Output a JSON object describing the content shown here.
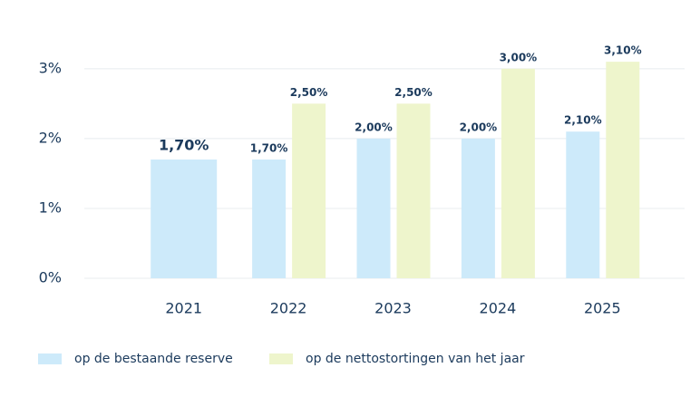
{
  "chart_data": {
    "type": "bar",
    "categories": [
      "2021",
      "2022",
      "2023",
      "2024",
      "2025"
    ],
    "series": [
      {
        "name": "op de bestaande reserve",
        "color": "#cdeafa",
        "values": [
          1.7,
          1.7,
          2.0,
          2.0,
          2.1
        ],
        "value_labels": [
          "1,70%",
          "1,70%",
          "2,00%",
          "2,00%",
          "2,10%"
        ]
      },
      {
        "name": "op de nettostortingen van het jaar",
        "color": "#eef5cc",
        "values": [
          null,
          2.5,
          2.5,
          3.0,
          3.1
        ],
        "value_labels": [
          null,
          "2,50%",
          "2,50%",
          "3,00%",
          "3,10%"
        ]
      }
    ],
    "ylim": [
      0,
      3.4
    ],
    "yticks": [
      {
        "value": 0,
        "label": "0%"
      },
      {
        "value": 1,
        "label": "1%"
      },
      {
        "value": 2,
        "label": "2%"
      },
      {
        "value": 3,
        "label": "3%"
      }
    ],
    "grid": true
  }
}
